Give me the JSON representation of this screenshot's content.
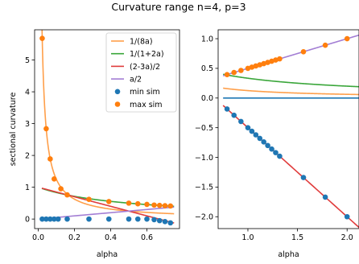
{
  "figure_title": "Curvature range n=4, p=3",
  "colors": {
    "c_8a": "#ff9f4a",
    "c_12a": "#3aa63a",
    "c_23a": "#e03c3c",
    "c_a2": "#a37ed4",
    "min_sim": "#1f77b4",
    "max_sim": "#ff7f0e"
  },
  "legend": {
    "placement": "top-right of left panel",
    "entries": [
      {
        "key": "c_8a",
        "label": "1/(8a)",
        "kind": "line"
      },
      {
        "key": "c_12a",
        "label": "1/(1+2a)",
        "kind": "line"
      },
      {
        "key": "c_23a",
        "label": "(2-3a)/2",
        "kind": "line"
      },
      {
        "key": "c_a2",
        "label": "a/2",
        "kind": "line"
      },
      {
        "key": "min_sim",
        "label": "min sim",
        "kind": "marker"
      },
      {
        "key": "max_sim",
        "label": "max sim",
        "kind": "marker"
      }
    ]
  },
  "chart_data": [
    {
      "type": "line",
      "title": "",
      "xlabel": "alpha",
      "ylabel": "sectional curvature",
      "xlim": [
        -0.02,
        0.78
      ],
      "ylim": [
        -0.3,
        5.95
      ],
      "xticks": [
        0.0,
        0.2,
        0.4,
        0.6
      ],
      "xtick_labels": [
        "0.0",
        "0.2",
        "0.4",
        "0.6"
      ],
      "yticks": [
        0,
        1,
        2,
        3,
        4,
        5
      ],
      "ytick_labels": [
        "0",
        "1",
        "2",
        "3",
        "4",
        "5"
      ],
      "grid": false,
      "curve_x_range": [
        0.02,
        0.75
      ],
      "series": [
        {
          "name": "1/(8a)",
          "formula": "1/(8a)",
          "color_key": "c_8a"
        },
        {
          "name": "1/(1+2a)",
          "formula": "1/(1+2a)",
          "color_key": "c_12a"
        },
        {
          "name": "(2-3a)/2",
          "formula": "(2-3a)/2",
          "color_key": "c_23a"
        },
        {
          "name": "a/2",
          "formula": "a/2",
          "color_key": "c_a2"
        }
      ],
      "scatter": [
        {
          "name": "max sim",
          "color_key": "max_sim",
          "points": [
            [
              0.022,
              5.68
            ],
            [
              0.044,
              2.84
            ],
            [
              0.066,
              1.89
            ],
            [
              0.088,
              1.26
            ],
            [
              0.125,
              0.95
            ],
            [
              0.16,
              0.76
            ],
            [
              0.28,
              0.62
            ],
            [
              0.39,
              0.55
            ],
            [
              0.5,
              0.5
            ],
            [
              0.55,
              0.48
            ],
            [
              0.6,
              0.46
            ],
            [
              0.64,
              0.44
            ],
            [
              0.67,
              0.43
            ],
            [
              0.7,
              0.42
            ],
            [
              0.73,
              0.41
            ]
          ]
        },
        {
          "name": "min sim",
          "color_key": "min_sim",
          "points": [
            [
              0.022,
              0.0
            ],
            [
              0.044,
              0.0
            ],
            [
              0.066,
              0.0
            ],
            [
              0.088,
              0.0
            ],
            [
              0.11,
              0.0
            ],
            [
              0.16,
              0.0
            ],
            [
              0.28,
              0.0
            ],
            [
              0.39,
              0.0
            ],
            [
              0.5,
              0.0
            ],
            [
              0.55,
              0.0
            ],
            [
              0.6,
              0.0
            ],
            [
              0.64,
              -0.02
            ],
            [
              0.67,
              -0.05
            ],
            [
              0.7,
              -0.08
            ],
            [
              0.73,
              -0.12
            ]
          ]
        }
      ]
    },
    {
      "type": "line",
      "title": "",
      "xlabel": "alpha",
      "ylabel": "",
      "xlim": [
        0.7,
        2.12
      ],
      "ylim": [
        -2.2,
        1.15
      ],
      "xticks": [
        1.0,
        1.5,
        2.0
      ],
      "xtick_labels": [
        "1.0",
        "1.5",
        "2.0"
      ],
      "yticks": [
        -2.0,
        -1.5,
        -1.0,
        -0.5,
        0.0,
        0.5,
        1.0
      ],
      "ytick_labels": [
        "−2.0",
        "−1.5",
        "−1.0",
        "−0.5",
        "0.0",
        "0.5",
        "1.0"
      ],
      "grid": false,
      "curve_x_range": [
        0.75,
        2.12
      ],
      "series": [
        {
          "name": "1/(8a)",
          "formula": "1/(8a)",
          "color_key": "c_8a"
        },
        {
          "name": "1/(1+2a)",
          "formula": "1/(1+2a)",
          "color_key": "c_12a"
        },
        {
          "name": "(2-3a)/2",
          "formula": "(2-3a)/2",
          "color_key": "c_23a"
        },
        {
          "name": "a/2",
          "formula": "a/2",
          "color_key": "c_a2"
        },
        {
          "name": "zero line",
          "formula": "0",
          "color_key": "min_sim"
        }
      ],
      "scatter": [
        {
          "name": "max sim",
          "color_key": "max_sim",
          "points": [
            [
              0.79,
              0.395
            ],
            [
              0.86,
              0.43
            ],
            [
              0.93,
              0.465
            ],
            [
              1.0,
              0.5
            ],
            [
              1.04,
              0.52
            ],
            [
              1.08,
              0.54
            ],
            [
              1.12,
              0.56
            ],
            [
              1.16,
              0.58
            ],
            [
              1.2,
              0.6
            ],
            [
              1.24,
              0.62
            ],
            [
              1.28,
              0.64
            ],
            [
              1.32,
              0.66
            ],
            [
              1.56,
              0.78
            ],
            [
              1.78,
              0.89
            ],
            [
              2.0,
              1.0
            ]
          ]
        },
        {
          "name": "min sim",
          "color_key": "min_sim",
          "points": [
            [
              0.79,
              -0.185
            ],
            [
              0.86,
              -0.29
            ],
            [
              0.93,
              -0.395
            ],
            [
              1.0,
              -0.5
            ],
            [
              1.04,
              -0.56
            ],
            [
              1.08,
              -0.62
            ],
            [
              1.12,
              -0.68
            ],
            [
              1.16,
              -0.74
            ],
            [
              1.2,
              -0.8
            ],
            [
              1.24,
              -0.86
            ],
            [
              1.28,
              -0.92
            ],
            [
              1.32,
              -0.98
            ],
            [
              1.56,
              -1.34
            ],
            [
              1.78,
              -1.67
            ],
            [
              2.0,
              -2.0
            ]
          ]
        }
      ]
    }
  ]
}
